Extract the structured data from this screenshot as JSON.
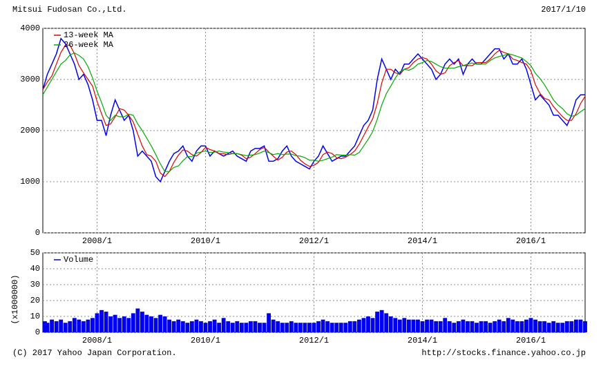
{
  "header": {
    "title": "Mitsui Fudosan Co.,Ltd.",
    "date": "2017/1/10"
  },
  "footer": {
    "copyright": "(C) 2017 Yahoo Japan Corporation.",
    "url": "http://stocks.finance.yahoo.co.jp"
  },
  "chart_data": [
    {
      "type": "line",
      "x": [
        "2007/1",
        "2007/2",
        "2007/3",
        "2007/4",
        "2007/5",
        "2007/6",
        "2007/7",
        "2007/8",
        "2007/9",
        "2007/10",
        "2007/11",
        "2007/12",
        "2008/1",
        "2008/2",
        "2008/3",
        "2008/4",
        "2008/5",
        "2008/6",
        "2008/7",
        "2008/8",
        "2008/9",
        "2008/10",
        "2008/11",
        "2008/12",
        "2009/1",
        "2009/2",
        "2009/3",
        "2009/4",
        "2009/5",
        "2009/6",
        "2009/7",
        "2009/8",
        "2009/9",
        "2009/10",
        "2009/11",
        "2009/12",
        "2010/1",
        "2010/2",
        "2010/3",
        "2010/4",
        "2010/5",
        "2010/6",
        "2010/7",
        "2010/8",
        "2010/9",
        "2010/10",
        "2010/11",
        "2010/12",
        "2011/1",
        "2011/2",
        "2011/3",
        "2011/4",
        "2011/5",
        "2011/6",
        "2011/7",
        "2011/8",
        "2011/9",
        "2011/10",
        "2011/11",
        "2011/12",
        "2012/1",
        "2012/2",
        "2012/3",
        "2012/4",
        "2012/5",
        "2012/6",
        "2012/7",
        "2012/8",
        "2012/9",
        "2012/10",
        "2012/11",
        "2012/12",
        "2013/1",
        "2013/2",
        "2013/3",
        "2013/4",
        "2013/5",
        "2013/6",
        "2013/7",
        "2013/8",
        "2013/9",
        "2013/10",
        "2013/11",
        "2013/12",
        "2014/1",
        "2014/2",
        "2014/3",
        "2014/4",
        "2014/5",
        "2014/6",
        "2014/7",
        "2014/8",
        "2014/9",
        "2014/10",
        "2014/11",
        "2014/12",
        "2015/1",
        "2015/2",
        "2015/3",
        "2015/4",
        "2015/5",
        "2015/6",
        "2015/7",
        "2015/8",
        "2015/9",
        "2015/10",
        "2015/11",
        "2015/12",
        "2016/1",
        "2016/2",
        "2016/3",
        "2016/4",
        "2016/5",
        "2016/6",
        "2016/7",
        "2016/8",
        "2016/9",
        "2016/10",
        "2016/11",
        "2016/12",
        "2017/1"
      ],
      "series": [
        {
          "color": "#0000ee",
          "values": [
            2800,
            3100,
            3300,
            3500,
            3800,
            3700,
            3500,
            3300,
            3000,
            3100,
            2900,
            2600,
            2200,
            2200,
            1900,
            2300,
            2600,
            2400,
            2200,
            2300,
            2000,
            1500,
            1600,
            1500,
            1400,
            1100,
            1000,
            1200,
            1400,
            1550,
            1600,
            1700,
            1500,
            1400,
            1600,
            1700,
            1700,
            1500,
            1600,
            1550,
            1500,
            1550,
            1600,
            1500,
            1450,
            1400,
            1600,
            1650,
            1650,
            1700,
            1400,
            1400,
            1450,
            1600,
            1700,
            1500,
            1400,
            1350,
            1300,
            1250,
            1400,
            1500,
            1700,
            1550,
            1400,
            1450,
            1500,
            1500,
            1600,
            1700,
            1900,
            2100,
            2200,
            2400,
            3000,
            3400,
            3200,
            3000,
            3200,
            3100,
            3300,
            3300,
            3400,
            3500,
            3400,
            3300,
            3200,
            3000,
            3100,
            3300,
            3400,
            3300,
            3400,
            3100,
            3300,
            3400,
            3300,
            3300,
            3400,
            3500,
            3600,
            3600,
            3400,
            3500,
            3300,
            3300,
            3400,
            3200,
            2900,
            2600,
            2700,
            2600,
            2500,
            2300,
            2300,
            2200,
            2100,
            2300,
            2600,
            2700,
            2700
          ]
        },
        {
          "name": "13-week MA",
          "color": "#dd0000",
          "values": [
            2800,
            2950,
            3070,
            3300,
            3530,
            3670,
            3670,
            3500,
            3270,
            3130,
            3000,
            2870,
            2570,
            2330,
            2100,
            2130,
            2270,
            2430,
            2400,
            2300,
            2170,
            1930,
            1700,
            1530,
            1500,
            1400,
            1170,
            1100,
            1200,
            1380,
            1520,
            1620,
            1600,
            1530,
            1500,
            1570,
            1670,
            1630,
            1600,
            1550,
            1550,
            1530,
            1550,
            1550,
            1520,
            1450,
            1480,
            1550,
            1630,
            1670,
            1580,
            1500,
            1420,
            1480,
            1580,
            1600,
            1530,
            1420,
            1350,
            1300,
            1320,
            1380,
            1530,
            1580,
            1550,
            1470,
            1450,
            1480,
            1530,
            1600,
            1730,
            1900,
            2070,
            2230,
            2530,
            2930,
            3200,
            3200,
            3130,
            3100,
            3200,
            3230,
            3330,
            3400,
            3430,
            3400,
            3300,
            3170,
            3100,
            3130,
            3270,
            3330,
            3370,
            3270,
            3270,
            3270,
            3330,
            3330,
            3330,
            3400,
            3500,
            3570,
            3530,
            3500,
            3400,
            3370,
            3330,
            3300,
            3170,
            2900,
            2730,
            2630,
            2600,
            2470,
            2370,
            2270,
            2200,
            2200,
            2330,
            2530,
            2670
          ]
        },
        {
          "name": "26-week MA",
          "color": "#00aa00",
          "values": [
            2700,
            2850,
            3000,
            3150,
            3300,
            3370,
            3480,
            3520,
            3470,
            3400,
            3250,
            3030,
            2770,
            2550,
            2300,
            2200,
            2300,
            2270,
            2270,
            2320,
            2300,
            2130,
            2000,
            1850,
            1700,
            1530,
            1350,
            1200,
            1200,
            1280,
            1310,
            1410,
            1490,
            1490,
            1560,
            1580,
            1600,
            1570,
            1580,
            1600,
            1580,
            1570,
            1550,
            1550,
            1530,
            1510,
            1520,
            1530,
            1560,
            1600,
            1570,
            1530,
            1550,
            1530,
            1540,
            1540,
            1510,
            1500,
            1470,
            1420,
            1420,
            1400,
            1420,
            1450,
            1480,
            1530,
            1520,
            1520,
            1530,
            1520,
            1570,
            1700,
            1830,
            1980,
            2220,
            2500,
            2720,
            2870,
            3030,
            3150,
            3200,
            3180,
            3220,
            3300,
            3330,
            3370,
            3350,
            3300,
            3250,
            3220,
            3220,
            3220,
            3250,
            3270,
            3300,
            3320,
            3300,
            3300,
            3300,
            3370,
            3420,
            3450,
            3470,
            3500,
            3480,
            3450,
            3420,
            3350,
            3270,
            3120,
            3020,
            2900,
            2750,
            2600,
            2500,
            2430,
            2330,
            2280,
            2300,
            2370,
            2430
          ]
        }
      ],
      "xlim": [
        "2007/1",
        "2017/1"
      ],
      "xticks": [
        "2008/1",
        "2010/1",
        "2012/1",
        "2014/1",
        "2016/1"
      ],
      "ylim": [
        0,
        4000
      ],
      "yticks": [
        0,
        1000,
        2000,
        3000,
        4000
      ],
      "grid": true
    },
    {
      "type": "bar",
      "ylabel": "(x1000000)",
      "series": [
        {
          "name": "Volume",
          "color": "#0000ee",
          "values": [
            7,
            6,
            8,
            7,
            8,
            6,
            7,
            9,
            8,
            7,
            8,
            9,
            12,
            14,
            13,
            10,
            11,
            9,
            10,
            9,
            12,
            15,
            13,
            11,
            10,
            9,
            11,
            10,
            8,
            7,
            8,
            7,
            6,
            7,
            8,
            7,
            6,
            7,
            8,
            6,
            9,
            7,
            6,
            7,
            6,
            6,
            7,
            7,
            6,
            6,
            12,
            8,
            7,
            6,
            6,
            7,
            6,
            6,
            6,
            6,
            6,
            7,
            8,
            7,
            6,
            6,
            6,
            6,
            7,
            7,
            8,
            9,
            10,
            9,
            13,
            14,
            12,
            10,
            9,
            8,
            9,
            8,
            8,
            8,
            7,
            8,
            8,
            7,
            7,
            9,
            7,
            6,
            7,
            8,
            7,
            7,
            6,
            7,
            7,
            6,
            7,
            8,
            7,
            9,
            8,
            7,
            7,
            8,
            9,
            8,
            7,
            7,
            6,
            7,
            6,
            6,
            7,
            7,
            8,
            8,
            7
          ]
        }
      ],
      "xlim": [
        "2007/1",
        "2017/1"
      ],
      "xticks": [
        "2008/1",
        "2010/1",
        "2012/1",
        "2014/1",
        "2016/1"
      ],
      "ylim": [
        0,
        50
      ],
      "yticks": [
        0,
        10,
        20,
        30,
        40,
        50
      ],
      "grid": true
    }
  ]
}
